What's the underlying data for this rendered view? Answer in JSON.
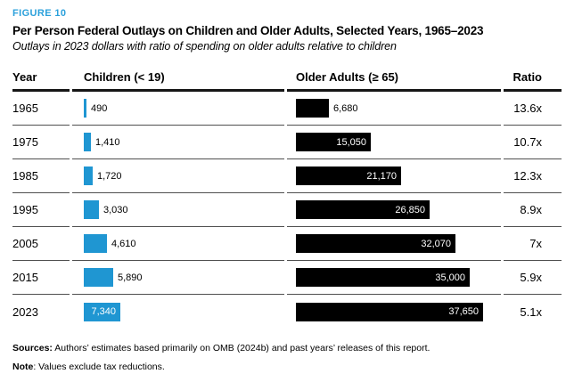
{
  "figure_label": "FIGURE 10",
  "title": "Per Person Federal Outlays on Children and Older Adults, Selected Years, 1965–2023",
  "subtitle": "Outlays in 2023 dollars with ratio of spending on older adults relative to children",
  "columns": {
    "year": "Year",
    "children": "Children (< 19)",
    "older": "Older Adults (≥ 65)",
    "ratio": "Ratio"
  },
  "colors": {
    "accent_blue": "#1F96D2",
    "figure_label_blue": "#2AA0DB",
    "bar_black": "#000000",
    "header_rule": "#161616",
    "row_rule": "#4f4f4f"
  },
  "footer": {
    "sources_label": "Sources:",
    "sources_text": " Authors’ estimates based primarily on OMB (2024b) and past years’ releases of this report.",
    "note_label": "Note",
    "note_text": ": Values exclude tax reductions."
  },
  "chart_data": {
    "type": "bar",
    "orientation": "horizontal",
    "title": "Per Person Federal Outlays on Children and Older Adults, Selected Years, 1965–2023",
    "subtitle": "Outlays in 2023 dollars with ratio of spending on older adults relative to children",
    "categories": [
      "1965",
      "1975",
      "1985",
      "1995",
      "2005",
      "2015",
      "2023"
    ],
    "series": [
      {
        "name": "Children (< 19)",
        "color": "#1F96D2",
        "values": [
          490,
          1410,
          1720,
          3030,
          4610,
          5890,
          7340
        ],
        "labels": [
          "490",
          "1,410",
          "1,720",
          "3,030",
          "4,610",
          "5,890",
          "7,340"
        ]
      },
      {
        "name": "Older Adults (≥ 65)",
        "color": "#000000",
        "values": [
          6680,
          15050,
          21170,
          26850,
          32070,
          35000,
          37650
        ],
        "labels": [
          "6,680",
          "15,050",
          "21,170",
          "26,850",
          "32,070",
          "35,000",
          "37,650"
        ]
      }
    ],
    "ratios": [
      "13.6x",
      "10.7x",
      "12.3x",
      "8.9x",
      "7x",
      "5.9x",
      "5.1x"
    ],
    "value_axis_max": 37650,
    "grid": false,
    "legend_position": "none"
  }
}
